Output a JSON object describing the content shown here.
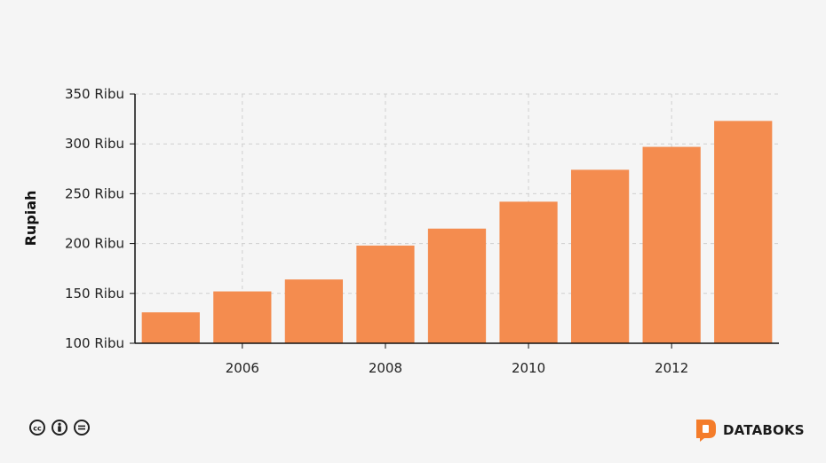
{
  "chart_data": {
    "type": "bar",
    "x": [
      2005,
      2006,
      2007,
      2008,
      2009,
      2010,
      2011,
      2012,
      2013
    ],
    "values": [
      131000,
      152000,
      164000,
      198000,
      215000,
      242000,
      274000,
      297000,
      323000
    ],
    "x_tick_labels": [
      "2006",
      "2008",
      "2010",
      "2012"
    ],
    "x_tick_values": [
      2006,
      2008,
      2010,
      2012
    ],
    "y_tick_values": [
      100000,
      150000,
      200000,
      250000,
      300000,
      350000
    ],
    "y_tick_labels": [
      "100 Ribu",
      "150 Ribu",
      "200 Ribu",
      "250 Ribu",
      "300 Ribu",
      "350 Ribu"
    ],
    "ylim": [
      100000,
      350000
    ],
    "ylabel": "Rupiah",
    "xlabel": "",
    "bar_color": "#f48c4f",
    "grid": true
  },
  "footer": {
    "brand": "DATABOKS",
    "brand_color": "#f47c2a",
    "license_icons": [
      "cc-icon",
      "by-icon",
      "nd-icon"
    ]
  }
}
